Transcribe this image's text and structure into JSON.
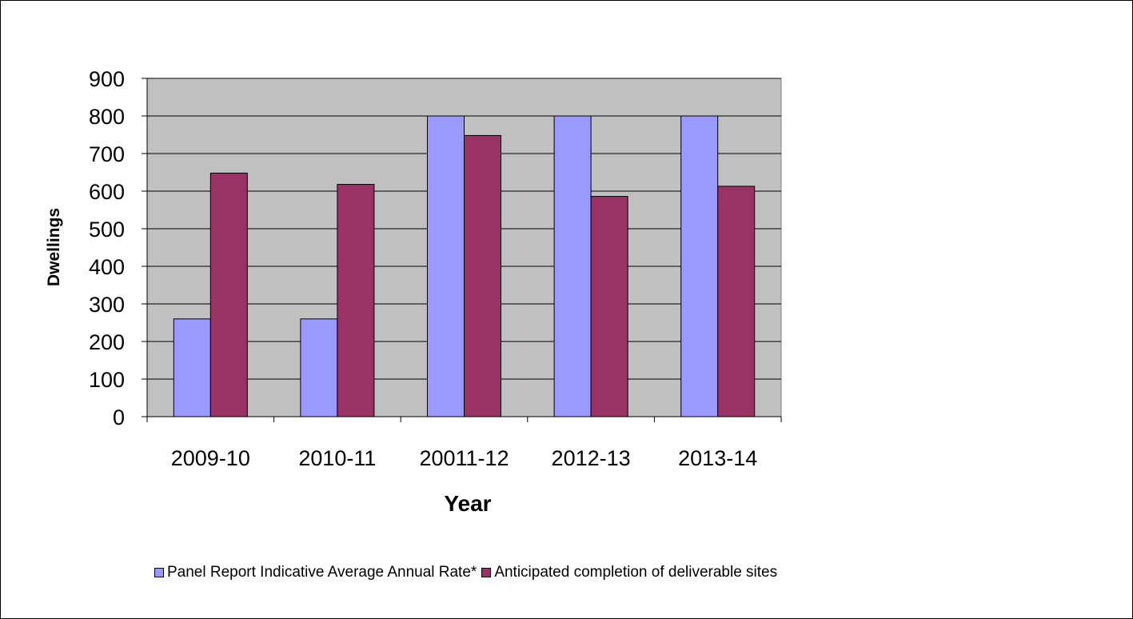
{
  "chart_data": {
    "type": "bar",
    "categories": [
      "2009-10",
      "2010-11",
      "20011-12",
      "2012-13",
      "2013-14"
    ],
    "series": [
      {
        "name": "Panel Report Indicative Average Annual Rate*",
        "color": "#9999ff",
        "values": [
          260,
          260,
          800,
          800,
          800
        ]
      },
      {
        "name": "Anticipated completion of deliverable sites",
        "color": "#993366",
        "values": [
          648,
          618,
          748,
          586,
          613
        ]
      }
    ],
    "title": "",
    "xlabel": "Year",
    "ylabel": "Dwellings",
    "ylim": [
      0,
      900
    ],
    "yticks": [
      0,
      100,
      200,
      300,
      400,
      500,
      600,
      700,
      800,
      900
    ],
    "grid": true,
    "plot_background": "#c0c0c0",
    "legend_position": "bottom"
  }
}
